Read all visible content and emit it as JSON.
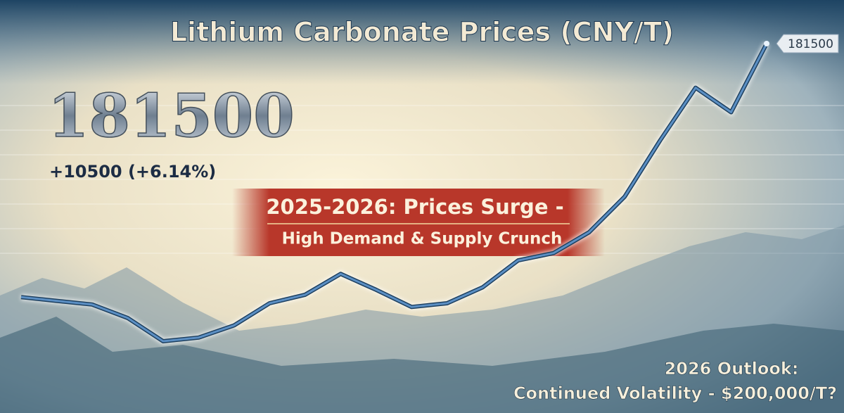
{
  "chart_data": {
    "type": "line",
    "title": "Lithium Carbonate Prices (CNY/T)",
    "change": "+10500 (+6.14%)",
    "annotation": "2025-2026: Prices Surge -",
    "annotation_sub": "High Demand & Supply Crunch",
    "outlook_title": "2026 Outlook:",
    "outlook_text": "Continued Volatility - $200,000/T?",
    "categories": [
      null,
      null,
      null,
      null,
      null,
      null,
      null,
      null,
      null,
      null,
      null,
      null,
      null,
      null,
      null,
      null,
      null,
      null,
      null,
      null,
      null,
      null
    ],
    "values": [
      78000,
      76500,
      75000,
      69500,
      60000,
      61500,
      66500,
      75500,
      79000,
      87500,
      81000,
      74000,
      75500,
      82000,
      93000,
      96000,
      104500,
      119000,
      142000,
      163500,
      153500,
      181500
    ],
    "color": "#5b8fc4"
  }
}
